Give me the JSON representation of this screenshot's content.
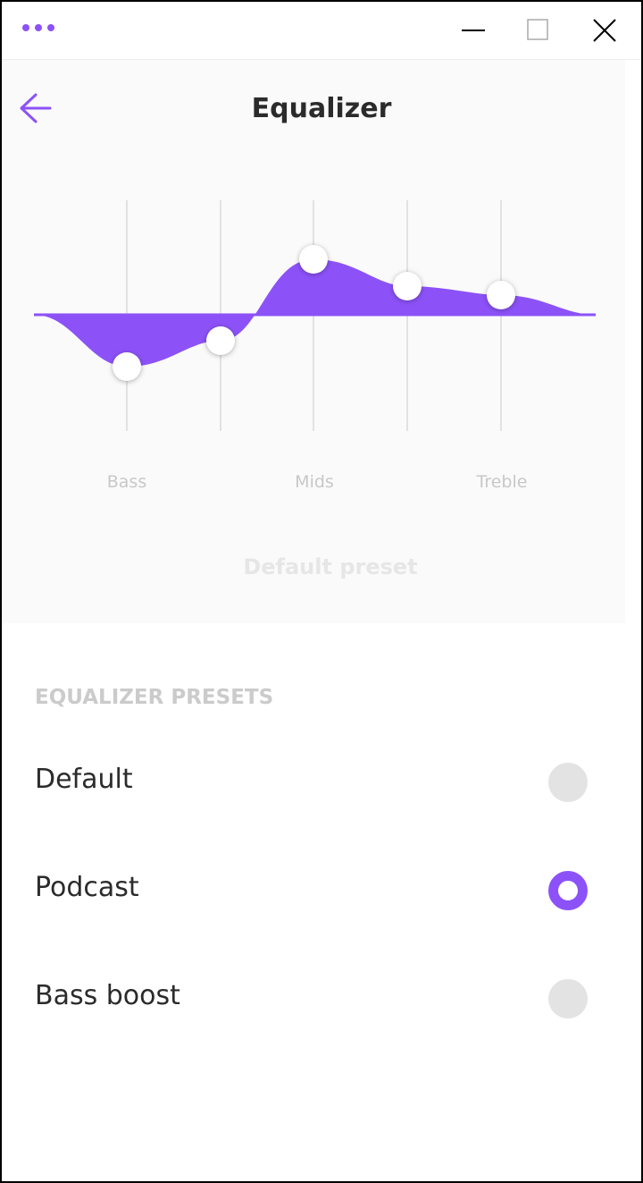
{
  "header": {
    "title": "Equalizer"
  },
  "equalizer": {
    "band_labels": [
      "Bass",
      "Mids",
      "Treble"
    ],
    "preset_name": "Default preset"
  },
  "presets": {
    "heading": "EQUALIZER PRESETS",
    "items": [
      "Default",
      "Podcast",
      "Bass boost"
    ],
    "selected_index": 1
  }
}
